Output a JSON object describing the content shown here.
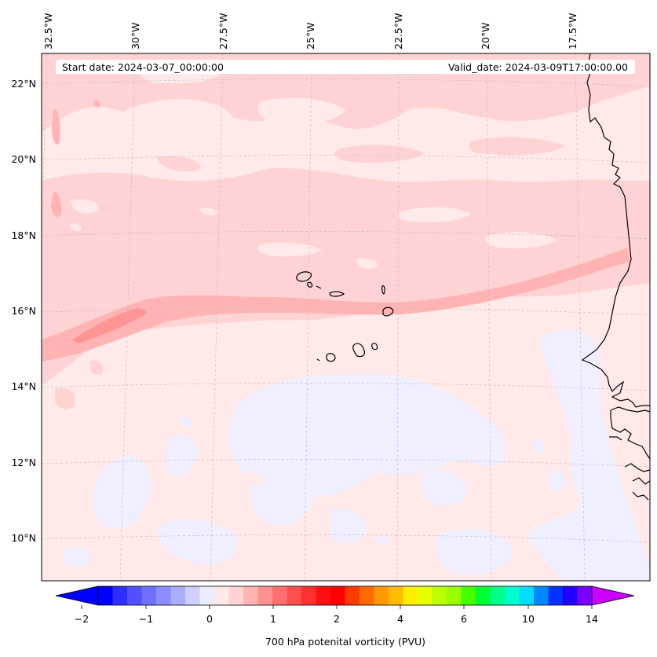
{
  "header": {
    "start_date": "Start date: 2024-03-07_00:00:00",
    "valid_date": "Valid_date: 2024-03-09T17:00:00.00"
  },
  "map": {
    "longitude_labels": [
      "32.5°W",
      "30°W",
      "27.5°W",
      "25°W",
      "22.5°W",
      "20°W",
      "17.5°W"
    ],
    "latitude_labels": [
      "22°N",
      "20°N",
      "18°N",
      "16°N",
      "14°N",
      "12°N",
      "10°N"
    ],
    "field": "700 hPa potential vorticity",
    "islands": "Cape Verde"
  },
  "colorbar": {
    "title": "700 hPa potenital vorticity (PVU)",
    "tick_labels": [
      "−2",
      "−1",
      "0",
      "1",
      "2",
      "4",
      "6",
      "10",
      "14"
    ],
    "bin_colors": [
      "#0000ff",
      "#2e2eff",
      "#5050ff",
      "#7070ff",
      "#8c8cff",
      "#ababff",
      "#cfcfff",
      "#ececff",
      "#ffe8e8",
      "#ffd3d3",
      "#ffb3b3",
      "#ff9090",
      "#ff7070",
      "#ff5050",
      "#ff3030",
      "#ff1010",
      "#ff0000",
      "#ff3a00",
      "#ff6a00",
      "#ff9900",
      "#ffbb00",
      "#ffee00",
      "#e6ff00",
      "#bbff00",
      "#99ff00",
      "#44ff00",
      "#00ff33",
      "#00ff88",
      "#00ffcc",
      "#00ddff",
      "#0088ff",
      "#0033ff",
      "#2200ff",
      "#7a00ff"
    ],
    "extend_low_color": "#0000ff",
    "extend_high_color": "#cc00ff"
  },
  "colors": {
    "background_field": "#ffe9e9",
    "low_pv": "#efefff",
    "pv_0_5": "#ffd3d3",
    "pv_1": "#ffb3b3",
    "pv_1_5": "#ff9494",
    "coastline": "#000000",
    "grid": "#bbbbbb"
  }
}
